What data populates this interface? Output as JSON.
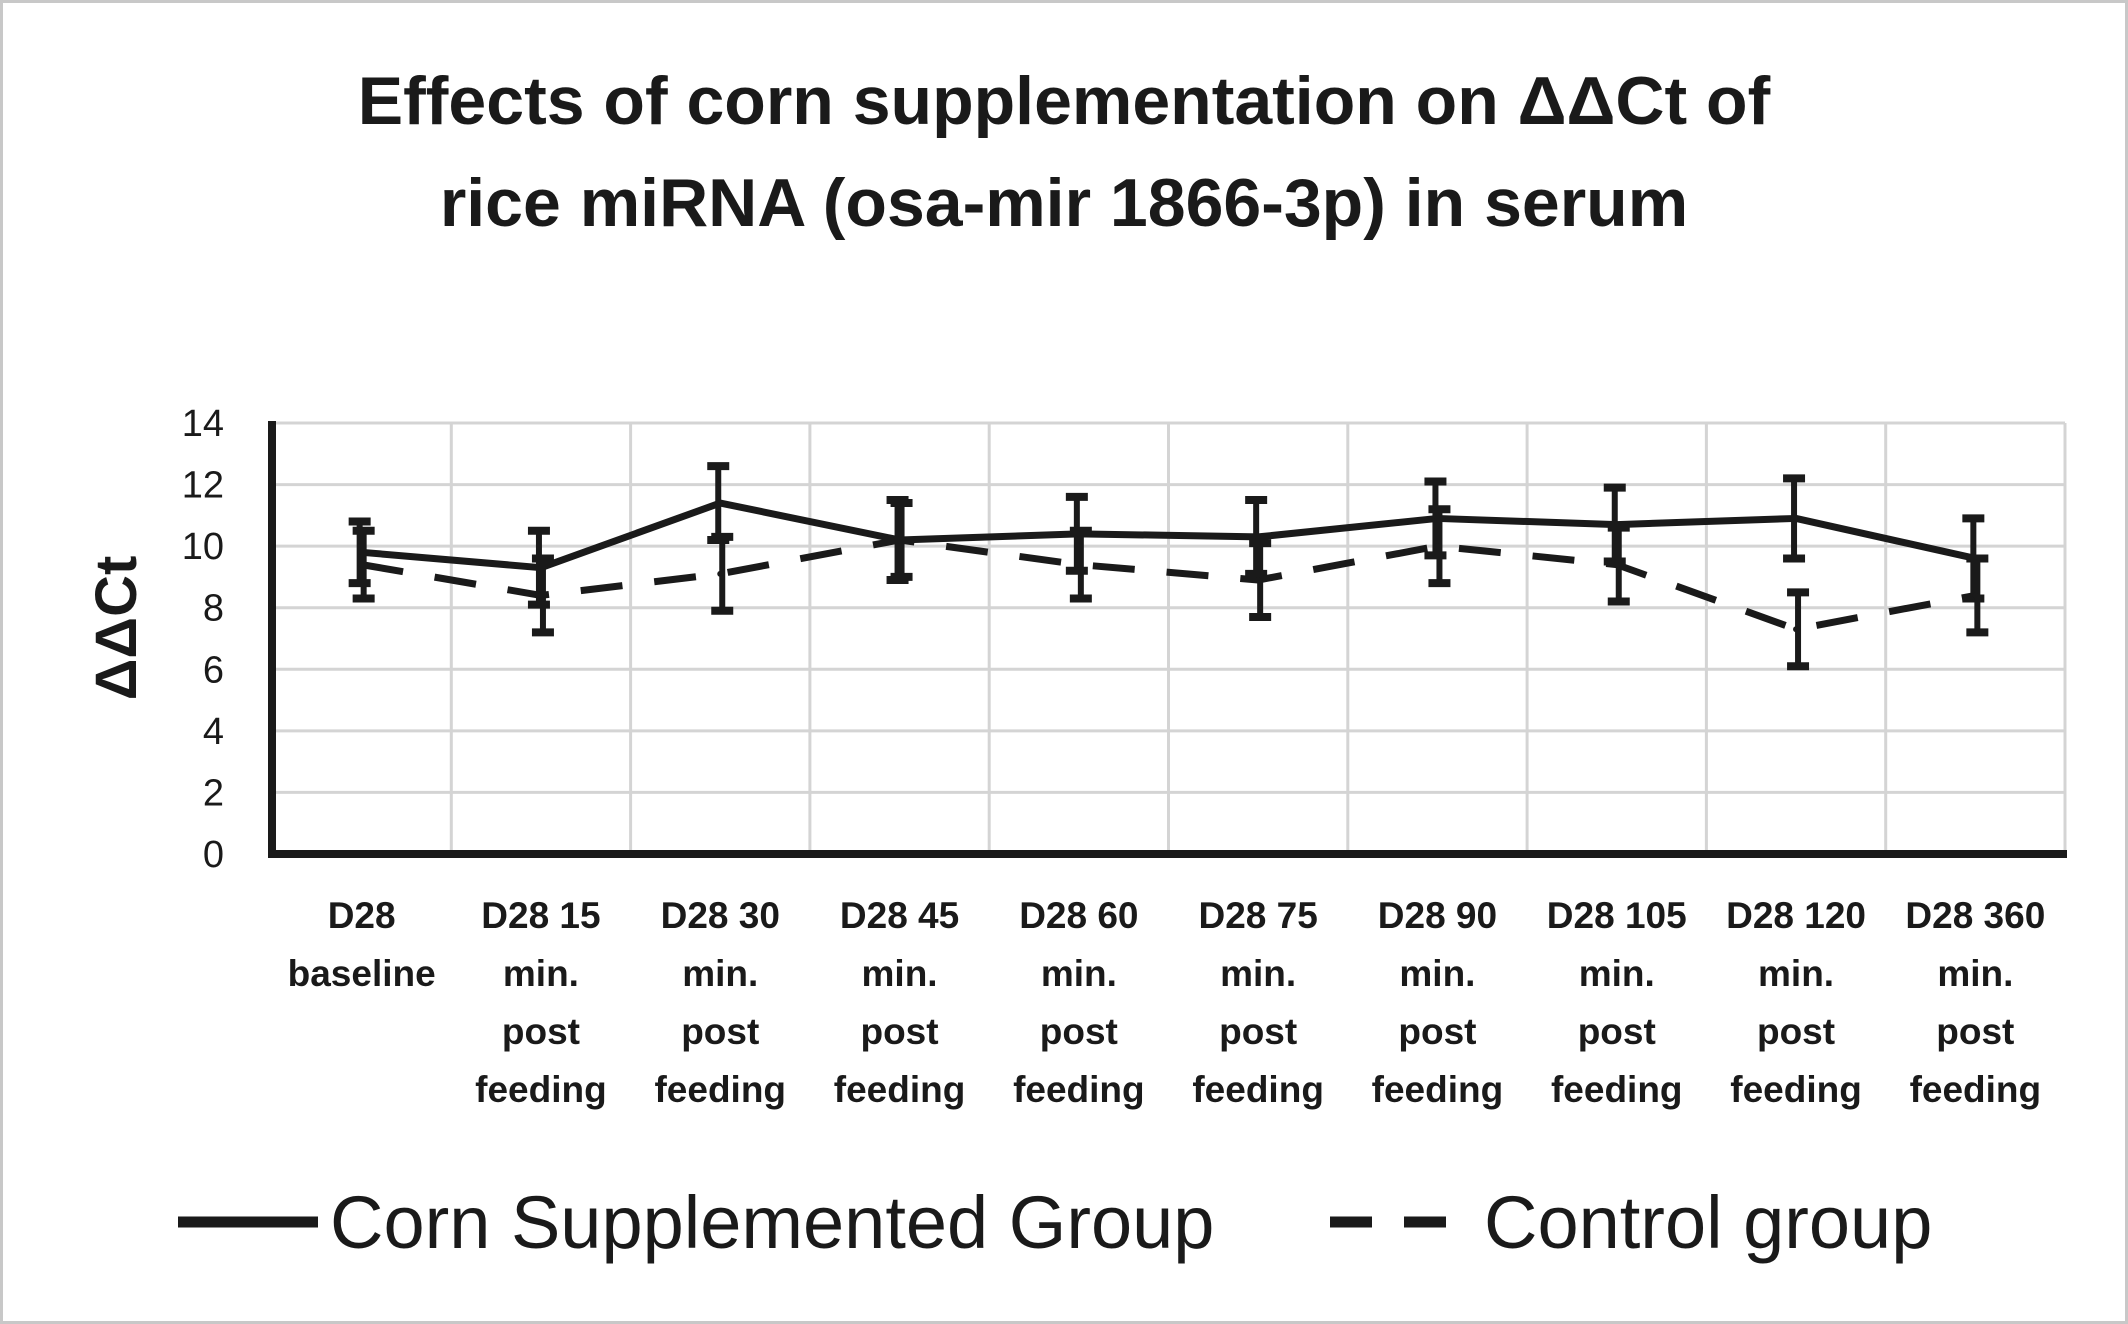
{
  "chart_data": {
    "type": "line",
    "title": "Effects of corn supplementation on ΔΔCt of rice miRNA (osa-mir 1866-3p) in serum",
    "title_lines": [
      "Effects of corn supplementation on ΔΔCt of",
      "rice miRNA (osa-mir 1866-3p) in serum"
    ],
    "xlabel": "",
    "ylabel": "ΔΔCt",
    "ylim": [
      0,
      14
    ],
    "yticks": [
      0,
      2,
      4,
      6,
      8,
      10,
      12,
      14
    ],
    "grid": true,
    "legend_position": "bottom",
    "categories": [
      [
        "D28",
        "baseline"
      ],
      [
        "D28 15",
        "min.",
        "post",
        "feeding"
      ],
      [
        "D28 30",
        "min.",
        "post",
        "feeding"
      ],
      [
        "D28 45",
        "min.",
        "post",
        "feeding"
      ],
      [
        "D28 60",
        "min.",
        "post",
        "feeding"
      ],
      [
        "D28 75",
        "min.",
        "post",
        "feeding"
      ],
      [
        "D28 90",
        "min.",
        "post",
        "feeding"
      ],
      [
        "D28 105",
        "min.",
        "post",
        "feeding"
      ],
      [
        "D28 120",
        "min.",
        "post",
        "feeding"
      ],
      [
        "D28 360",
        "min.",
        "post",
        "feeding"
      ]
    ],
    "series": [
      {
        "name": "Corn Supplemented Group",
        "line_style": "solid",
        "color": "#1a1a1a",
        "values": [
          9.8,
          9.3,
          11.4,
          10.2,
          10.4,
          10.3,
          10.9,
          10.7,
          10.9,
          9.6
        ],
        "error": [
          1.0,
          1.2,
          1.2,
          1.3,
          1.2,
          1.2,
          1.2,
          1.2,
          1.3,
          1.3
        ]
      },
      {
        "name": "Control group",
        "line_style": "dashed",
        "color": "#1a1a1a",
        "values": [
          9.4,
          8.4,
          9.1,
          10.2,
          9.4,
          8.9,
          10.0,
          9.4,
          7.3,
          8.4
        ],
        "error": [
          1.1,
          1.2,
          1.2,
          1.2,
          1.1,
          1.2,
          1.2,
          1.2,
          1.2,
          1.2
        ]
      }
    ]
  }
}
